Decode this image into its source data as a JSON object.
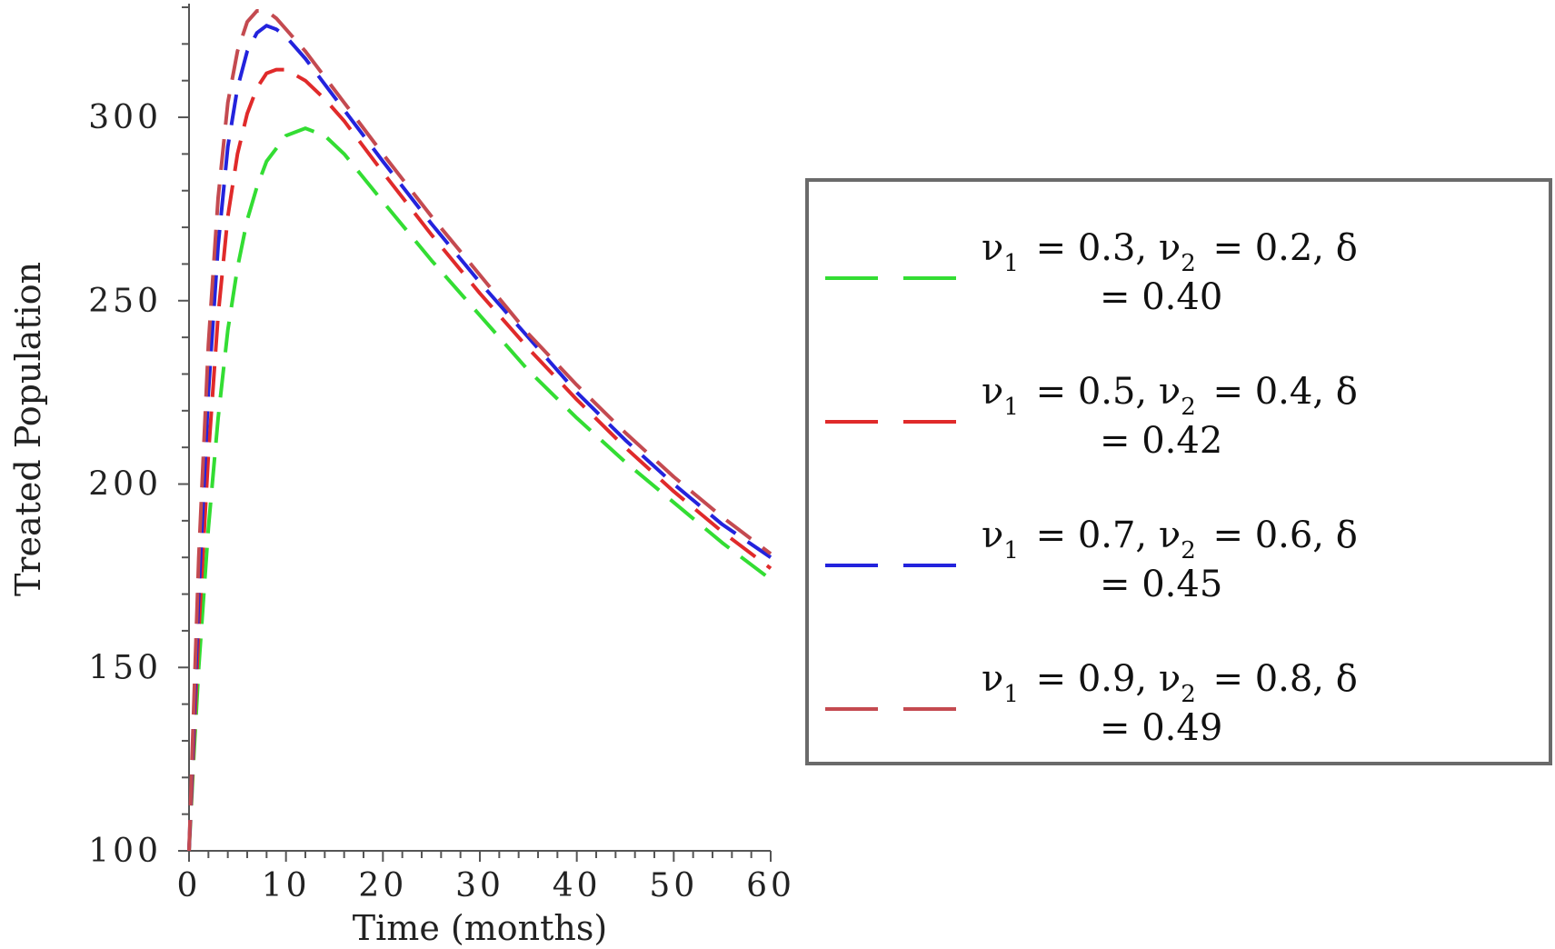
{
  "chart_data": {
    "type": "line",
    "xlabel": "Time (months)",
    "ylabel": "Treated Population",
    "xlim": [
      0,
      60
    ],
    "ylim": [
      100,
      330
    ],
    "x_ticks": [
      0,
      10,
      20,
      30,
      40,
      50,
      60
    ],
    "y_ticks": [
      100,
      150,
      200,
      250,
      300
    ],
    "grid": false,
    "legend_position": "right",
    "series": [
      {
        "label_line1": "= 0.3, ",
        "label_line1b": "= 0.2, δ",
        "label_line2": "= 0.40",
        "color": "#33dd33",
        "x": [
          0,
          0.5,
          1,
          2,
          3,
          4,
          5,
          6,
          7,
          8,
          10,
          12,
          14,
          16,
          20,
          25,
          30,
          35,
          40,
          45,
          50,
          55,
          60
        ],
        "y": [
          100,
          126,
          150,
          188,
          218,
          242,
          259,
          272,
          281,
          288,
          295,
          297,
          295,
          290,
          277,
          261,
          246,
          231,
          218,
          206,
          195,
          184,
          174
        ]
      },
      {
        "label_line1": "= 0.5, ",
        "label_line1b": "= 0.4, δ",
        "label_line2": "= 0.42",
        "color": "#e02a2a",
        "x": [
          0,
          0.5,
          1,
          2,
          3,
          4,
          5,
          6,
          7,
          8,
          9,
          10,
          12,
          14,
          16,
          20,
          25,
          30,
          35,
          40,
          45,
          50,
          55,
          60
        ],
        "y": [
          100,
          130,
          160,
          208,
          246,
          273,
          290,
          301,
          308,
          312,
          313,
          313,
          310,
          305,
          299,
          285,
          268,
          252,
          237,
          223,
          210,
          198,
          187,
          177
        ]
      },
      {
        "label_line1": "= 0.7, ",
        "label_line1b": "= 0.6, δ",
        "label_line2": "= 0.45",
        "color": "#2323dd",
        "x": [
          0,
          0.5,
          1,
          2,
          3,
          4,
          5,
          6,
          7,
          8,
          9,
          10,
          12,
          14,
          16,
          20,
          25,
          30,
          35,
          40,
          45,
          50,
          55,
          60
        ],
        "y": [
          100,
          135,
          170,
          225,
          265,
          292,
          308,
          318,
          323,
          325,
          324,
          322,
          316,
          309,
          302,
          288,
          271,
          255,
          240,
          225,
          212,
          200,
          189,
          180
        ]
      },
      {
        "label_line1": "= 0.9, ",
        "label_line1b": "= 0.8, δ",
        "label_line2": "= 0.49",
        "color": "#c44a50",
        "x": [
          0,
          0.5,
          1,
          2,
          3,
          4,
          5,
          6,
          7,
          8,
          9,
          10,
          12,
          14,
          16,
          20,
          25,
          30,
          35,
          40,
          45,
          50,
          55,
          60
        ],
        "y": [
          100,
          140,
          180,
          238,
          278,
          304,
          318,
          326,
          329,
          329,
          327,
          324,
          318,
          311,
          304,
          290,
          273,
          257,
          241,
          227,
          214,
          202,
          191,
          181
        ]
      }
    ]
  },
  "legend_symbols": {
    "nu": "ν",
    "sub1": "1",
    "sub2": "2"
  }
}
